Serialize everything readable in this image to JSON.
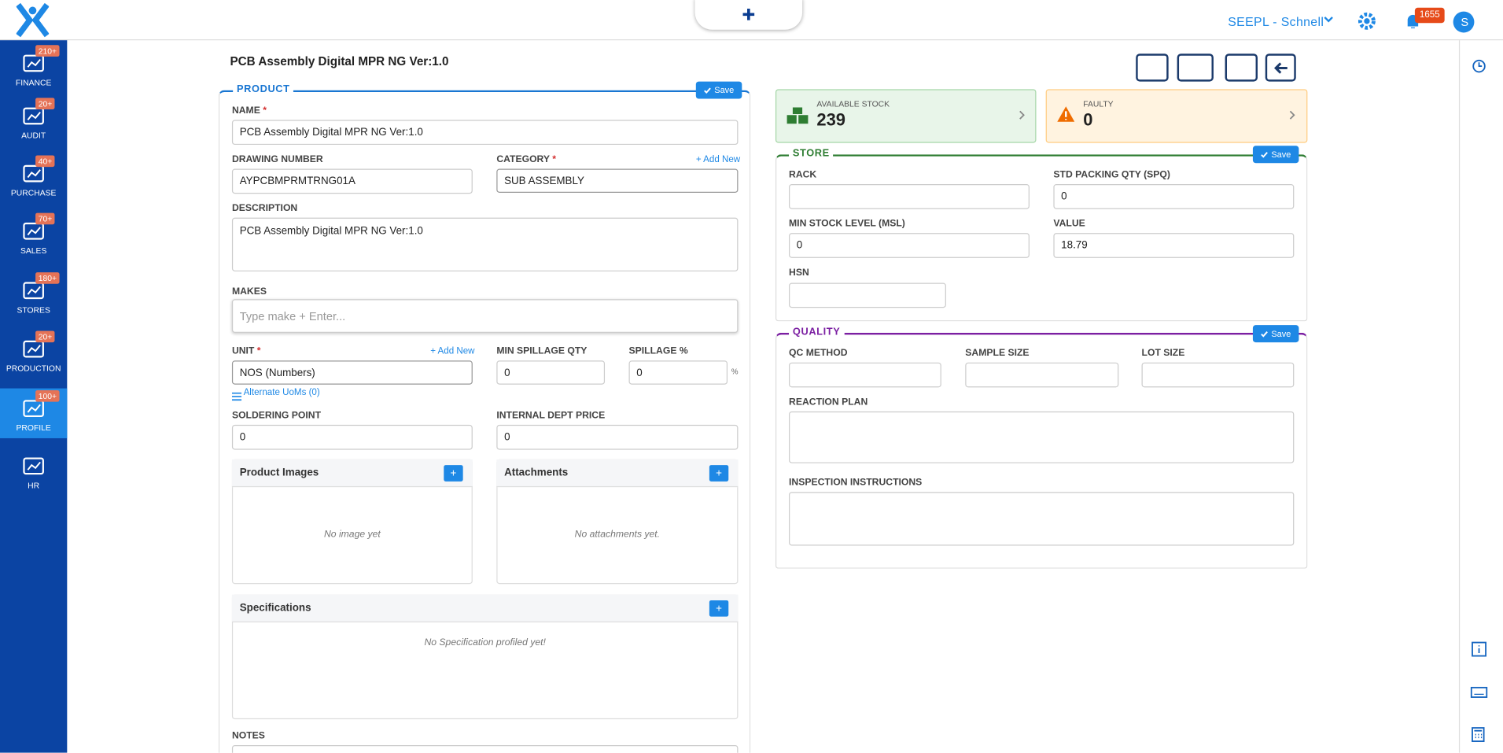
{
  "header": {
    "organization": "SEEPL - Schnell",
    "notifications": "1655",
    "avatar": "S"
  },
  "sidebar": [
    {
      "label": "FINANCE",
      "badge": "210+"
    },
    {
      "label": "AUDIT",
      "badge": "20+"
    },
    {
      "label": "PURCHASE",
      "badge": "40+"
    },
    {
      "label": "SALES",
      "badge": "70+"
    },
    {
      "label": "STORES",
      "badge": "180+"
    },
    {
      "label": "PRODUCTION",
      "badge": "20+"
    },
    {
      "label": "PROFILE",
      "badge": "100+"
    },
    {
      "label": "HR"
    }
  ],
  "page": {
    "title": "PCB Assembly Digital MPR NG Ver:1.0"
  },
  "product": {
    "heading": "PRODUCT",
    "save": "Save",
    "required_mark": "*",
    "add_new": "+ Add New",
    "add_button": "+",
    "name": {
      "label": "NAME",
      "value": "PCB Assembly Digital MPR NG Ver:1.0"
    },
    "drawing_number": {
      "label": "DRAWING NUMBER",
      "value": "AYPCBMPRMTRNG01A"
    },
    "category": {
      "label": "CATEGORY",
      "value": "SUB ASSEMBLY"
    },
    "description": {
      "label": "DESCRIPTION",
      "value": "PCB Assembly Digital MPR NG Ver:1.0"
    },
    "makes": {
      "label": "MAKES",
      "placeholder": "Type make + Enter..."
    },
    "unit": {
      "label": "UNIT",
      "value": "NOS (Numbers)",
      "alternate": "Alternate UoMs (0)"
    },
    "min_spillage_qty": {
      "label": "MIN SPILLAGE QTY",
      "value": "0"
    },
    "spillage_percent": {
      "label": "SPILLAGE %",
      "value": "0",
      "suffix": "%"
    },
    "soldering_point": {
      "label": "SOLDERING POINT",
      "value": "0"
    },
    "internal_dept_price": {
      "label": "INTERNAL DEPT PRICE",
      "value": "0"
    },
    "product_images": {
      "title": "Product Images",
      "empty": "No image yet"
    },
    "attachments": {
      "title": "Attachments",
      "empty": "No attachments yet."
    },
    "specifications": {
      "title": "Specifications",
      "empty": "No Specification profiled yet!"
    },
    "notes": {
      "label": "NOTES"
    }
  },
  "stock": {
    "available": {
      "label": "AVAILABLE STOCK",
      "value": 239
    },
    "faulty": {
      "label": "FAULTY",
      "value": 0
    }
  },
  "store": {
    "heading": "STORE",
    "save": "Save",
    "rack": {
      "label": "RACK",
      "value": ""
    },
    "spq": {
      "label": "STD PACKING QTY (SPQ)",
      "value": "0"
    },
    "msl": {
      "label": "MIN STOCK LEVEL (MSL)",
      "value": "0"
    },
    "value": {
      "label": "VALUE",
      "value": "18.79"
    },
    "hsn": {
      "label": "HSN",
      "value": ""
    }
  },
  "quality": {
    "heading": "QUALITY",
    "save": "Save",
    "qc_method": {
      "label": "QC METHOD"
    },
    "sample_size": {
      "label": "SAMPLE SIZE"
    },
    "lot_size": {
      "label": "LOT SIZE"
    },
    "reaction_plan": {
      "label": "REACTION PLAN"
    },
    "inspection_instructions": {
      "label": "INSPECTION INSTRUCTIONS"
    }
  }
}
